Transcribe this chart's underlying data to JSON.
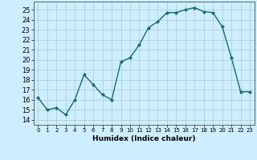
{
  "x": [
    0,
    1,
    2,
    3,
    4,
    5,
    6,
    7,
    8,
    9,
    10,
    11,
    12,
    13,
    14,
    15,
    16,
    17,
    18,
    19,
    20,
    21,
    22,
    23
  ],
  "y": [
    16.2,
    15.0,
    15.2,
    14.5,
    16.0,
    18.5,
    17.5,
    16.5,
    16.0,
    19.8,
    20.2,
    21.5,
    23.2,
    23.8,
    24.7,
    24.7,
    25.0,
    25.2,
    24.8,
    24.7,
    23.3,
    20.2,
    16.8,
    16.8
  ],
  "line_color": "#1a6b6b",
  "marker": "D",
  "marker_size": 2.0,
  "bg_color": "#cceeff",
  "grid_color": "#aacccc",
  "xlabel": "Humidex (Indice chaleur)",
  "ylim": [
    13.5,
    25.8
  ],
  "xlim": [
    -0.5,
    23.5
  ],
  "yticks": [
    14,
    15,
    16,
    17,
    18,
    19,
    20,
    21,
    22,
    23,
    24,
    25
  ],
  "xticks": [
    0,
    1,
    2,
    3,
    4,
    5,
    6,
    7,
    8,
    9,
    10,
    11,
    12,
    13,
    14,
    15,
    16,
    17,
    18,
    19,
    20,
    21,
    22,
    23
  ],
  "xlabel_fontsize": 6.5,
  "tick_fontsize": 6.0,
  "line_width": 1.0
}
